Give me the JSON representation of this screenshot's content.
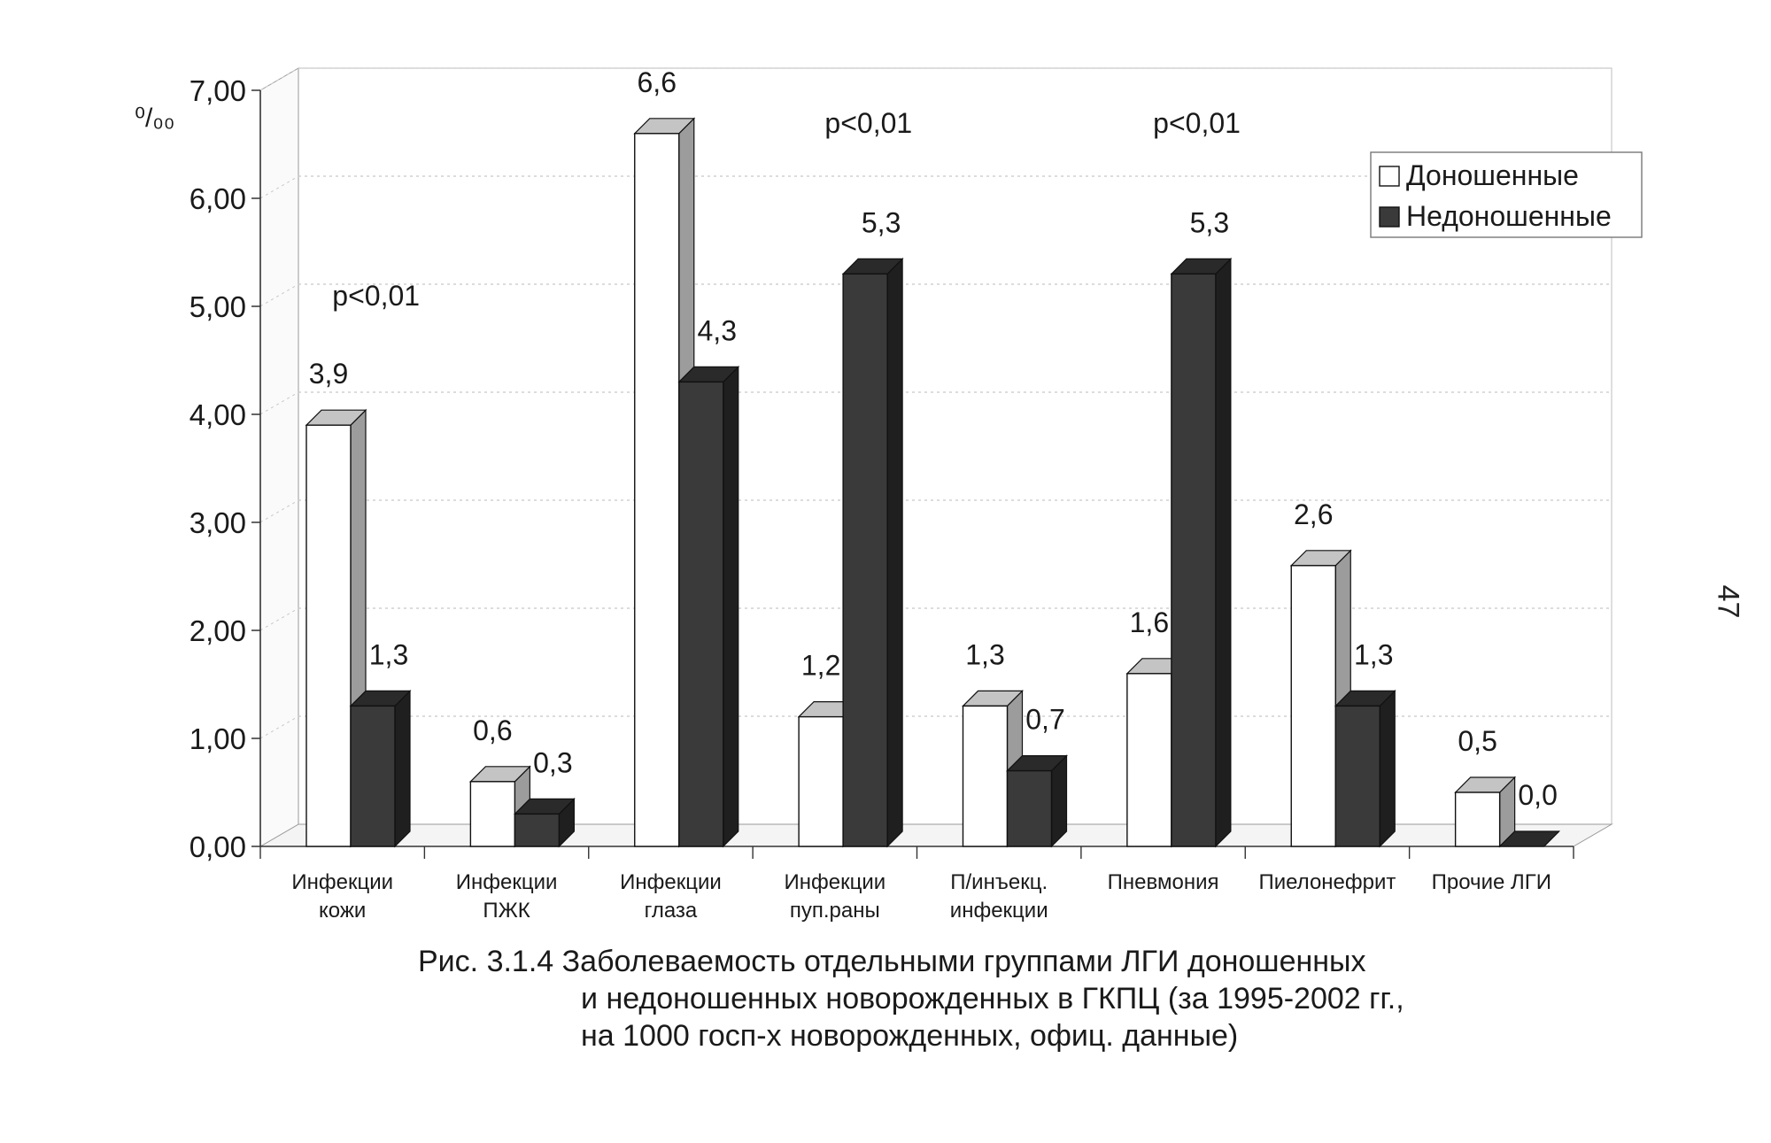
{
  "chart_data": {
    "type": "bar",
    "ylabel_unit": "⁰/₀₀",
    "ylim": [
      0,
      7
    ],
    "yticks": [
      "0,00",
      "1,00",
      "2,00",
      "3,00",
      "4,00",
      "5,00",
      "6,00",
      "7,00"
    ],
    "grid": true,
    "legend_position": "top-right",
    "categories": [
      [
        "Инфекции",
        "кожи"
      ],
      [
        "Инфекции",
        "ПЖК"
      ],
      [
        "Инфекции",
        "глаза"
      ],
      [
        "Инфекции",
        "пуп.раны"
      ],
      [
        "П/инъекц.",
        "инфекции"
      ],
      [
        "Пневмония"
      ],
      [
        "Пиелонефрит"
      ],
      [
        "Прочие ЛГИ"
      ]
    ],
    "series": [
      {
        "name": "Доношенные",
        "values": [
          3.9,
          0.6,
          6.6,
          1.2,
          1.3,
          1.6,
          2.6,
          0.5
        ],
        "labels": [
          "3,9",
          "0,6",
          "6,6",
          "1,2",
          "1,3",
          "1,6",
          "2,6",
          "0,5"
        ],
        "color": "#ffffff"
      },
      {
        "name": "Недоношенные",
        "values": [
          1.3,
          0.3,
          4.3,
          5.3,
          0.7,
          5.3,
          1.3,
          0.0
        ],
        "labels": [
          "1,3",
          "0,3",
          "4,3",
          "5,3",
          "0,7",
          "5,3",
          "1,3",
          "0,0"
        ],
        "color": "#3a3a3a"
      }
    ],
    "annotations": [
      {
        "text": "p<0,01",
        "category_index": 0
      },
      {
        "text": "p<0,01",
        "category_index": 3
      },
      {
        "text": "p<0,01",
        "category_index": 5
      }
    ]
  },
  "caption": {
    "line1": "Рис. 3.1.4 Заболеваемость отдельными группами ЛГИ доношенных",
    "line2": "и недоношенных новорожденных в ГКПЦ (за 1995-2002 гг.,",
    "line3": "на 1000 госп-х новорожденных, офиц. данные)"
  },
  "page_number": "47"
}
